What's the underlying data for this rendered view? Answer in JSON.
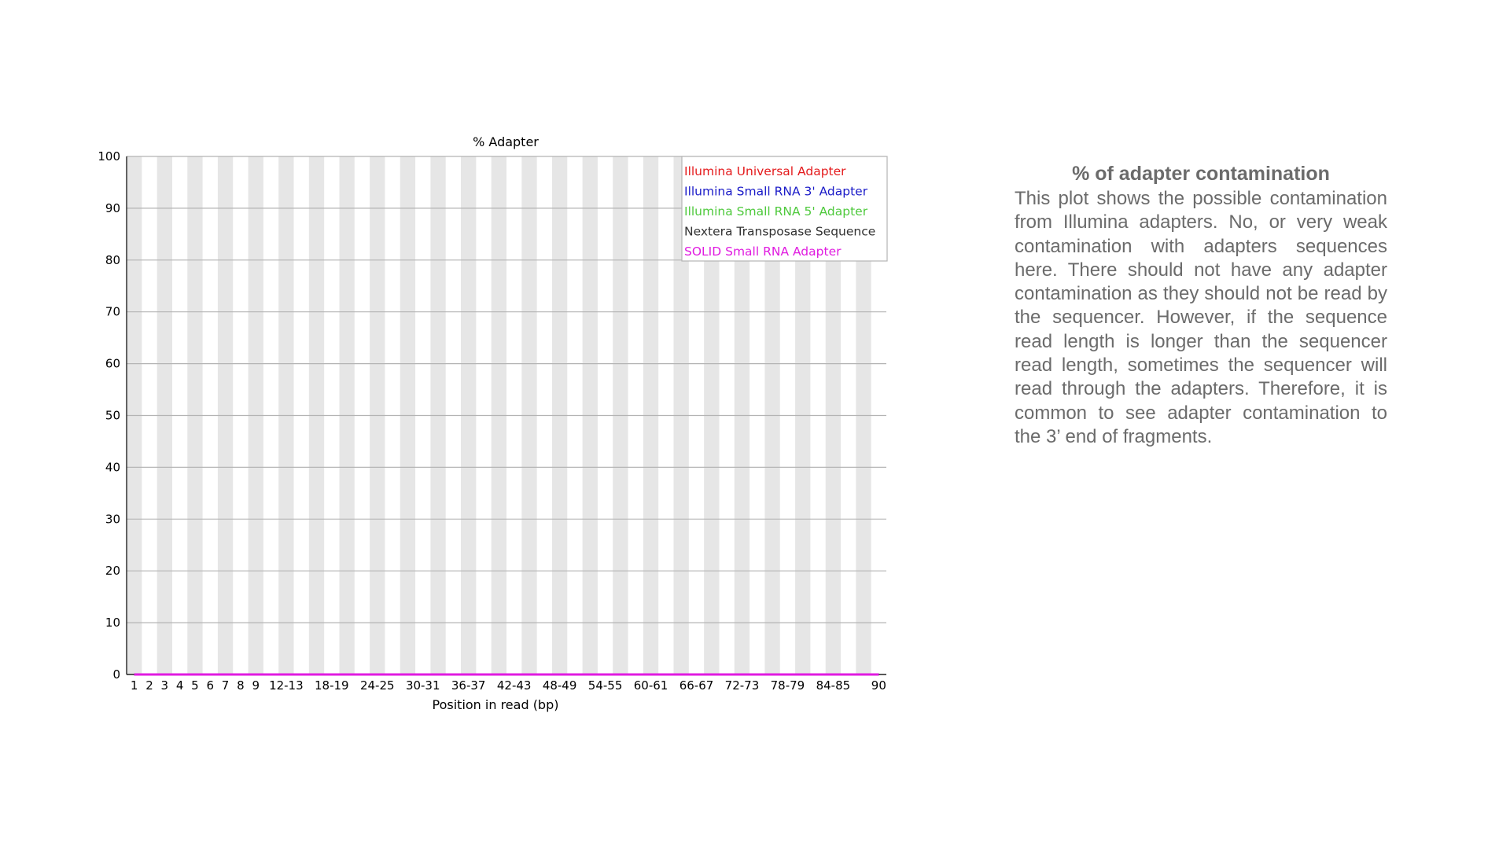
{
  "chart_data": {
    "type": "line",
    "title": "% Adapter",
    "xlabel": "Position in read (bp)",
    "ylabel": "",
    "ylim": [
      0,
      100
    ],
    "yticks": [
      0,
      10,
      20,
      30,
      40,
      50,
      60,
      70,
      80,
      90,
      100
    ],
    "grid": true,
    "legend_position": "top-right",
    "categories": [
      "1",
      "2",
      "3",
      "4",
      "5",
      "6",
      "7",
      "8",
      "9",
      "10-11",
      "12-13",
      "14-15",
      "16-17",
      "18-19",
      "20-21",
      "22-23",
      "24-25",
      "26-27",
      "28-29",
      "30-31",
      "32-33",
      "34-35",
      "36-37",
      "38-39",
      "40-41",
      "42-43",
      "44-45",
      "46-47",
      "48-49",
      "50-51",
      "52-53",
      "54-55",
      "56-57",
      "58-59",
      "60-61",
      "62-63",
      "64-65",
      "66-67",
      "68-69",
      "70-71",
      "72-73",
      "74-75",
      "76-77",
      "78-79",
      "80-81",
      "82-83",
      "84-85",
      "86-87",
      "88-89",
      "90"
    ],
    "tick_labels_shown": [
      "1",
      "2",
      "3",
      "4",
      "5",
      "6",
      "7",
      "8",
      "9",
      "12-13",
      "18-19",
      "24-25",
      "30-31",
      "36-37",
      "42-43",
      "48-49",
      "54-55",
      "60-61",
      "66-67",
      "72-73",
      "78-79",
      "84-85",
      "90"
    ],
    "series": [
      {
        "name": "Illumina Universal Adapter",
        "color": "#e41a1c",
        "values": [
          0,
          0,
          0,
          0,
          0,
          0,
          0,
          0,
          0,
          0,
          0,
          0,
          0,
          0,
          0,
          0,
          0,
          0,
          0,
          0,
          0,
          0,
          0,
          0,
          0,
          0,
          0,
          0,
          0,
          0,
          0,
          0,
          0,
          0,
          0,
          0,
          0,
          0,
          0,
          0,
          0,
          0,
          0,
          0,
          0,
          0,
          0,
          0,
          0,
          0
        ]
      },
      {
        "name": "Illumina Small RNA 3' Adapter",
        "color": "#1b1bc8",
        "values": [
          0,
          0,
          0,
          0,
          0,
          0,
          0,
          0,
          0,
          0,
          0,
          0,
          0,
          0,
          0,
          0,
          0,
          0,
          0,
          0,
          0,
          0,
          0,
          0,
          0,
          0,
          0,
          0,
          0,
          0,
          0,
          0,
          0,
          0,
          0,
          0,
          0,
          0,
          0,
          0,
          0,
          0,
          0,
          0,
          0,
          0,
          0,
          0,
          0,
          0
        ]
      },
      {
        "name": "Illumina Small RNA 5' Adapter",
        "color": "#4ec93c",
        "values": [
          0,
          0,
          0,
          0,
          0,
          0,
          0,
          0,
          0,
          0,
          0,
          0,
          0,
          0,
          0,
          0,
          0,
          0,
          0,
          0,
          0,
          0,
          0,
          0,
          0,
          0,
          0,
          0,
          0,
          0,
          0,
          0,
          0,
          0,
          0,
          0,
          0,
          0,
          0,
          0,
          0,
          0,
          0,
          0,
          0,
          0,
          0,
          0,
          0,
          0
        ]
      },
      {
        "name": "Nextera Transposase Sequence",
        "color": "#333333",
        "values": [
          0,
          0,
          0,
          0,
          0,
          0,
          0,
          0,
          0,
          0,
          0,
          0,
          0,
          0,
          0,
          0,
          0,
          0,
          0,
          0,
          0,
          0,
          0,
          0,
          0,
          0,
          0,
          0,
          0,
          0,
          0,
          0,
          0,
          0,
          0,
          0,
          0,
          0,
          0,
          0,
          0,
          0,
          0,
          0,
          0,
          0,
          0,
          0,
          0,
          0
        ]
      },
      {
        "name": "SOLID Small RNA Adapter",
        "color": "#e01be0",
        "values": [
          0,
          0,
          0,
          0,
          0,
          0,
          0,
          0,
          0,
          0,
          0,
          0,
          0,
          0,
          0,
          0,
          0,
          0,
          0,
          0,
          0,
          0,
          0,
          0,
          0,
          0,
          0,
          0,
          0,
          0,
          0,
          0,
          0,
          0,
          0,
          0,
          0,
          0,
          0,
          0,
          0,
          0,
          0,
          0,
          0,
          0,
          0,
          0,
          0,
          0
        ]
      }
    ]
  },
  "description": {
    "heading": "% of adapter contamination",
    "body": "This plot shows the possible contamination from Illumina adapters. No, or very weak contamination with adapters sequences here. There should not have any adapter contamination as they should not be read by the sequencer. However, if the sequence read length is longer than the sequencer read length, sometimes the sequencer will read through the adapters. Therefore, it is common to see adapter contamination to the 3’ end of fragments."
  }
}
